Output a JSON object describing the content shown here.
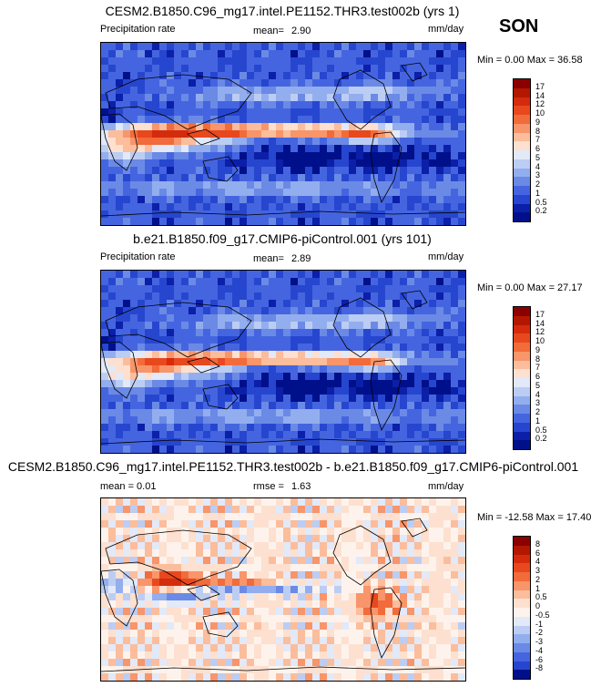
{
  "season": "SON",
  "panels": [
    {
      "title": "CESM2.B1850.C96_mg17.intel.PE1152.THR3.test002b (yrs 1)",
      "left_label": "Precipitation rate",
      "stat_label": "mean=",
      "stat_value": "2.90",
      "units": "mm/day",
      "minmax": "Min =   0.00 Max =  36.58",
      "levels": [
        "17",
        "14",
        "12",
        "10",
        "9",
        "8",
        "7",
        "6",
        "5",
        "4",
        "3",
        "2",
        "1",
        "0.5",
        "0.2"
      ],
      "colors": [
        "#8b0000",
        "#b31700",
        "#d42b0d",
        "#e8481e",
        "#f26b3a",
        "#f8956a",
        "#fbbd9c",
        "#fde0cf",
        "#e2e9f8",
        "#bccdf3",
        "#93aeee",
        "#6b8ae6",
        "#4565e0",
        "#2746cf",
        "#0b1fa8",
        "#00108a"
      ],
      "field": "precip",
      "intensity": 1.0
    },
    {
      "title": "b.e21.B1850.f09_g17.CMIP6-piControl.001 (yrs 101)",
      "left_label": "Precipitation rate",
      "stat_label": "mean=",
      "stat_value": "2.89",
      "units": "mm/day",
      "minmax": "Min =   0.00 Max =  27.17",
      "levels": [
        "17",
        "14",
        "12",
        "10",
        "9",
        "8",
        "7",
        "6",
        "5",
        "4",
        "3",
        "2",
        "1",
        "0.5",
        "0.2"
      ],
      "colors": [
        "#8b0000",
        "#b31700",
        "#d42b0d",
        "#e8481e",
        "#f26b3a",
        "#f8956a",
        "#fbbd9c",
        "#fde0cf",
        "#e2e9f8",
        "#bccdf3",
        "#93aeee",
        "#6b8ae6",
        "#4565e0",
        "#2746cf",
        "#0b1fa8",
        "#00108a"
      ],
      "field": "precip",
      "intensity": 0.9
    },
    {
      "title": "CESM2.B1850.C96_mg17.intel.PE1152.THR3.test002b - b.e21.B1850.f09_g17.CMIP6-piControl.001",
      "left_label": "mean =   0.01",
      "stat_label": "rmse =",
      "stat_value": "1.63",
      "units": "mm/day",
      "minmax": "Min = -12.58 Max =  17.40",
      "levels": [
        "8",
        "6",
        "4",
        "3",
        "2",
        "1",
        "0.5",
        "0",
        "-0.5",
        "-1",
        "-2",
        "-3",
        "-4",
        "-6",
        "-8"
      ],
      "colors": [
        "#8b0000",
        "#b31700",
        "#d42b0d",
        "#e8481e",
        "#f26b3a",
        "#f8956a",
        "#fbbd9c",
        "#fde0cf",
        "#fef3ec",
        "#e2e9f8",
        "#bccdf3",
        "#93aeee",
        "#6b8ae6",
        "#4565e0",
        "#2746cf",
        "#00108a"
      ],
      "field": "diff",
      "intensity": 1.0
    }
  ],
  "chart_data": [
    {
      "type": "heatmap",
      "title": "CESM2.B1850.C96_mg17.intel.PE1152.THR3.test002b (yrs 1)",
      "variable": "Precipitation rate",
      "units": "mm/day",
      "mean": 2.9,
      "min": 0.0,
      "max": 36.58,
      "season": "SON",
      "colorbar_levels": [
        0.2,
        0.5,
        1,
        2,
        3,
        4,
        5,
        6,
        7,
        8,
        9,
        10,
        12,
        14,
        17
      ]
    },
    {
      "type": "heatmap",
      "title": "b.e21.B1850.f09_g17.CMIP6-piControl.001 (yrs 101)",
      "variable": "Precipitation rate",
      "units": "mm/day",
      "mean": 2.89,
      "min": 0.0,
      "max": 27.17,
      "season": "SON",
      "colorbar_levels": [
        0.2,
        0.5,
        1,
        2,
        3,
        4,
        5,
        6,
        7,
        8,
        9,
        10,
        12,
        14,
        17
      ]
    },
    {
      "type": "heatmap",
      "title": "CESM2.B1850.C96_mg17.intel.PE1152.THR3.test002b - b.e21.B1850.f09_g17.CMIP6-piControl.001",
      "units": "mm/day",
      "mean": 0.01,
      "rmse": 1.63,
      "min": -12.58,
      "max": 17.4,
      "colorbar_levels": [
        -8,
        -6,
        -4,
        -3,
        -2,
        -1,
        -0.5,
        0,
        0.5,
        1,
        2,
        3,
        4,
        6,
        8
      ]
    }
  ]
}
